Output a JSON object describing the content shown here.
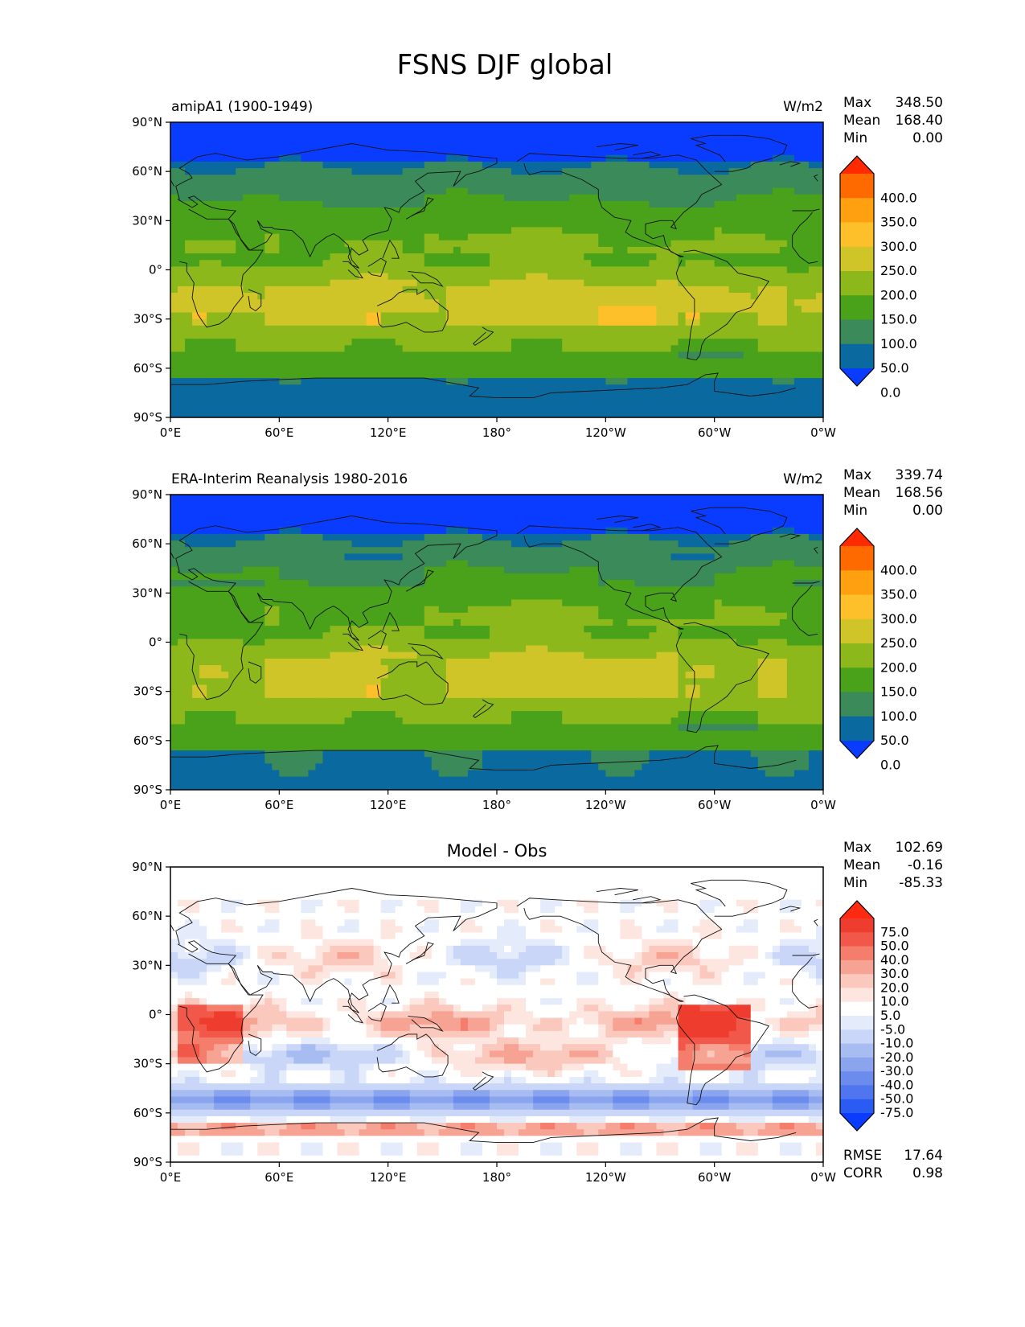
{
  "figure": {
    "title": "FSNS DJF global"
  },
  "x_ticks": [
    "0°E",
    "60°E",
    "120°E",
    "180°",
    "120°W",
    "60°W",
    "0°W"
  ],
  "y_ticks": [
    "90°N",
    "60°N",
    "30°N",
    "0°",
    "30°S",
    "60°S",
    "90°S"
  ],
  "stat_labels": {
    "max": "Max",
    "mean": "Mean",
    "min": "Min",
    "rmse": "RMSE",
    "corr": "CORR"
  },
  "panels": [
    {
      "left_title": "amipA1 (1900-1949)",
      "right_title": "W/m2",
      "center_title": "",
      "stats": {
        "max": "348.50",
        "mean": "168.40",
        "min": "0.00"
      },
      "colorbar": {
        "labels": [
          "400.0",
          "350.0",
          "300.0",
          "250.0",
          "200.0",
          "150.0",
          "100.0",
          "50.0",
          "0.0"
        ],
        "colors": [
          "#ff2a00",
          "#ff6a00",
          "#ffa010",
          "#fdc02a",
          "#cfc428",
          "#8cb81c",
          "#4aa21a",
          "#3a8a5a",
          "#0a6aa0",
          "#0a3cff"
        ]
      },
      "field": "model"
    },
    {
      "left_title": "ERA-Interim Reanalysis 1980-2016",
      "right_title": "W/m2",
      "center_title": "",
      "stats": {
        "max": "339.74",
        "mean": "168.56",
        "min": "0.00"
      },
      "colorbar": {
        "labels": [
          "400.0",
          "350.0",
          "300.0",
          "250.0",
          "200.0",
          "150.0",
          "100.0",
          "50.0",
          "0.0"
        ],
        "colors": [
          "#ff2a00",
          "#ff6a00",
          "#ffa010",
          "#fdc02a",
          "#cfc428",
          "#8cb81c",
          "#4aa21a",
          "#3a8a5a",
          "#0a6aa0",
          "#0a3cff"
        ]
      },
      "field": "obs"
    },
    {
      "left_title": "",
      "right_title": "",
      "center_title": "Model - Obs",
      "stats": {
        "max": "102.69",
        "mean": "-0.16",
        "min": "-85.33"
      },
      "extra_stats": {
        "rmse": "17.64",
        "corr": "0.98"
      },
      "colorbar": {
        "labels": [
          "75.0",
          "50.0",
          "40.0",
          "30.0",
          "20.0",
          "10.0",
          "5.0",
          "-5.0",
          "-10.0",
          "-20.0",
          "-30.0",
          "-40.0",
          "-50.0",
          "-75.0"
        ],
        "colors": [
          "#ff2a10",
          "#ee3d2e",
          "#f2584a",
          "#f47d6c",
          "#f7a394",
          "#fac8bd",
          "#fde6e0",
          "#ffffff",
          "#e4ebfb",
          "#c9d6f7",
          "#a7bcf1",
          "#8aa5ee",
          "#6b8cec",
          "#4f76ee",
          "#2a5cf4",
          "#0a3cff"
        ]
      },
      "field": "diff"
    }
  ]
}
